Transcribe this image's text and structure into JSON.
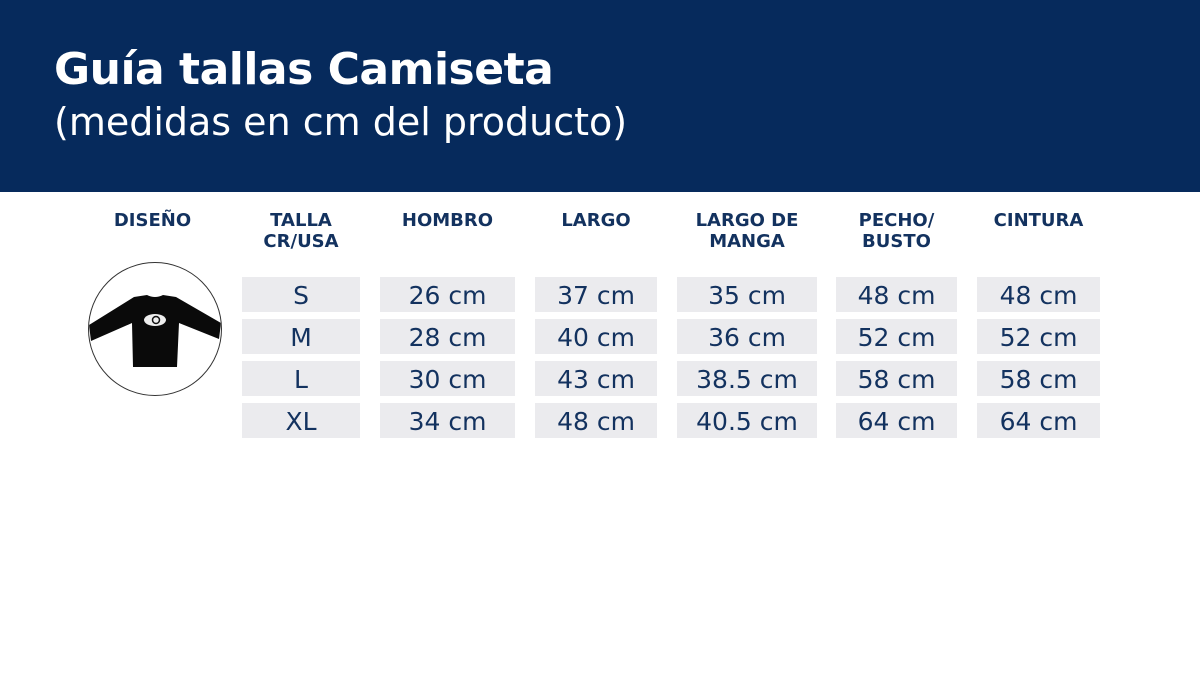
{
  "header": {
    "title": "Guía tallas Camiseta",
    "subtitle": "(medidas en cm del producto)",
    "background": "#062a5c"
  },
  "table": {
    "columns": [
      "DISEÑO",
      "TALLA CR/USA",
      "HOMBRO",
      "LARGO",
      "LARGO DE MANGA",
      "PECHO/ BUSTO",
      "CINTURA"
    ],
    "column_lines": [
      [
        "DISEÑO"
      ],
      [
        "TALLA",
        "CR/USA"
      ],
      [
        "HOMBRO"
      ],
      [
        "LARGO"
      ],
      [
        "LARGO DE",
        "MANGA"
      ],
      [
        "PECHO/",
        "BUSTO"
      ],
      [
        "CINTURA"
      ]
    ],
    "rows": [
      [
        "S",
        "26 cm",
        "37 cm",
        "35 cm",
        "48 cm",
        "48 cm"
      ],
      [
        "M",
        "28 cm",
        "40 cm",
        "36 cm",
        "52 cm",
        "52 cm"
      ],
      [
        "L",
        "30 cm",
        "43 cm",
        "38.5 cm",
        "58 cm",
        "58 cm"
      ],
      [
        "XL",
        "34 cm",
        "48 cm",
        "40.5 cm",
        "64 cm",
        "64 cm"
      ]
    ]
  },
  "design_image": "black-long-sleeve-shirt"
}
